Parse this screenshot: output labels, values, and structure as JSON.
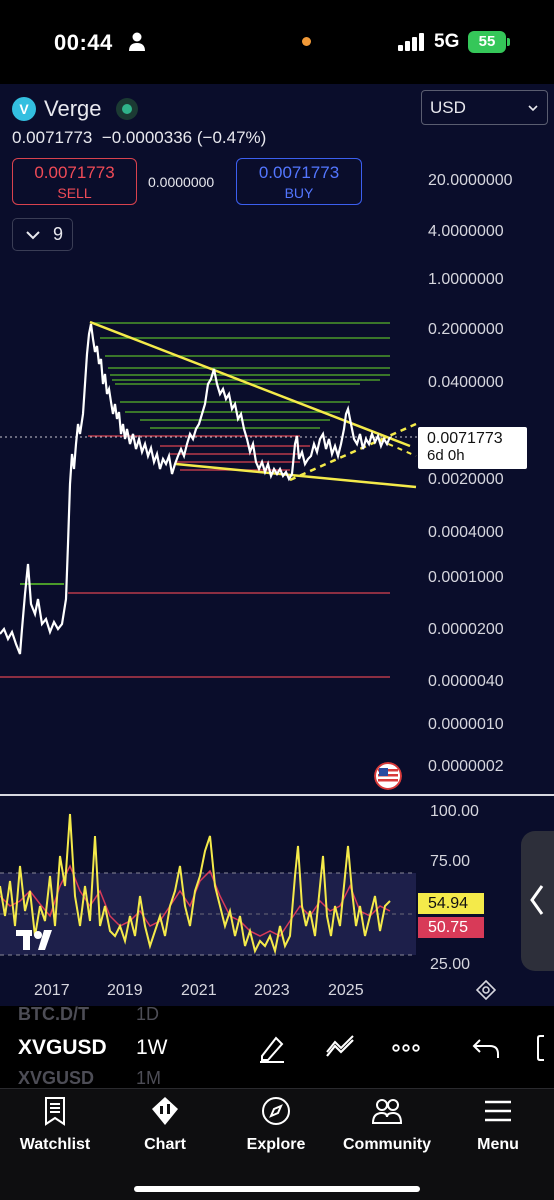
{
  "status_bar": {
    "time": "00:44",
    "network": "5G",
    "battery": "55"
  },
  "symbol": {
    "name": "Verge",
    "logo_glyph": "V"
  },
  "price": {
    "last": "0.0071773",
    "change": "−0.0000336",
    "change_pct": "(−0.47%)",
    "sell_price": "0.0071773",
    "sell_label": "SELL",
    "spread": "0.0000000",
    "buy_price": "0.0071773",
    "buy_label": "BUY"
  },
  "indicators_toggle": {
    "count": "9"
  },
  "currency": {
    "selected": "USD"
  },
  "price_axis": {
    "labels": [
      "20.0000000",
      "4.0000000",
      "1.0000000",
      "0.2000000",
      "0.0400000",
      "0.0020000",
      "0.0004000",
      "0.0001000",
      "0.0000200",
      "0.0000040",
      "0.0000010",
      "0.0000002"
    ],
    "current_price": "0.0071773",
    "countdown": "6d 0h"
  },
  "rsi": {
    "axis_labels": [
      "100.00",
      "75.00",
      "25.00"
    ],
    "value": "54.94",
    "signal": "50.75",
    "colors": {
      "rsi": "#f4ea4a",
      "signal": "#d83a58"
    }
  },
  "time_axis": {
    "labels": [
      "2017",
      "2019",
      "2021",
      "2023",
      "2025"
    ]
  },
  "toolbar": {
    "ghost_top_symbol": "BTC.D/T",
    "ghost_top_interval": "1D",
    "symbol": "XVGUSD",
    "interval": "1W",
    "ghost_bottom_symbol": "XVGUSD",
    "ghost_bottom_interval": "1M"
  },
  "nav": {
    "items": [
      {
        "label": "Watchlist",
        "icon": "bookmark-icon"
      },
      {
        "label": "Chart",
        "icon": "chart-candle-icon"
      },
      {
        "label": "Explore",
        "icon": "compass-icon"
      },
      {
        "label": "Community",
        "icon": "people-icon"
      },
      {
        "label": "Menu",
        "icon": "hamburger-icon"
      }
    ]
  },
  "colors": {
    "background": "#0a0d2b",
    "price_line": "#ffffff",
    "trendline": "#f4ea4a",
    "support_zone": "#4a9a2a",
    "resistance_zone": "#b83a4a",
    "sell": "#f04b57",
    "buy": "#5376ff"
  }
}
